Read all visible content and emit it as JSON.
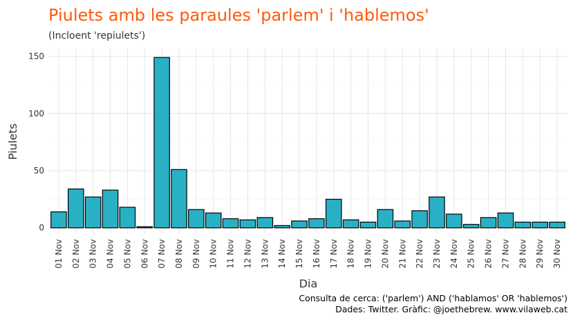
{
  "chart_data": {
    "type": "bar",
    "title": "Piulets amb les paraules 'parlem' i 'hablemos'",
    "subtitle": "(Incloent 'repiulets')",
    "xlabel": "Dia",
    "ylabel": "Piulets",
    "caption_line1": "Consulta de cerca: ('parlem') AND ('hablamos' OR 'hablemos')",
    "caption_line2": "Dades: Twitter. Gràfic: @joethebrew. www.vilaweb.cat",
    "categories": [
      "01 Nov",
      "02 Nov",
      "03 Nov",
      "04 Nov",
      "05 Nov",
      "06 Nov",
      "07 Nov",
      "08 Nov",
      "09 Nov",
      "10 Nov",
      "11 Nov",
      "12 Nov",
      "13 Nov",
      "14 Nov",
      "15 Nov",
      "16 Nov",
      "17 Nov",
      "18 Nov",
      "19 Nov",
      "20 Nov",
      "21 Nov",
      "22 Nov",
      "23 Nov",
      "24 Nov",
      "25 Nov",
      "26 Nov",
      "27 Nov",
      "28 Nov",
      "29 Nov",
      "30 Nov"
    ],
    "values": [
      14,
      34,
      27,
      33,
      18,
      1,
      149,
      51,
      16,
      13,
      8,
      7,
      9,
      2,
      6,
      8,
      25,
      7,
      5,
      16,
      6,
      15,
      27,
      12,
      3,
      9,
      13,
      5,
      5,
      5
    ],
    "yticks": [
      0,
      50,
      100,
      150
    ],
    "ylim": [
      -5,
      157
    ],
    "grid": true,
    "colors": {
      "bar_fill": "#2ab0c5",
      "bar_stroke": "#000000",
      "title": "#ff5a0a",
      "grid": "#e6e6e6"
    }
  }
}
